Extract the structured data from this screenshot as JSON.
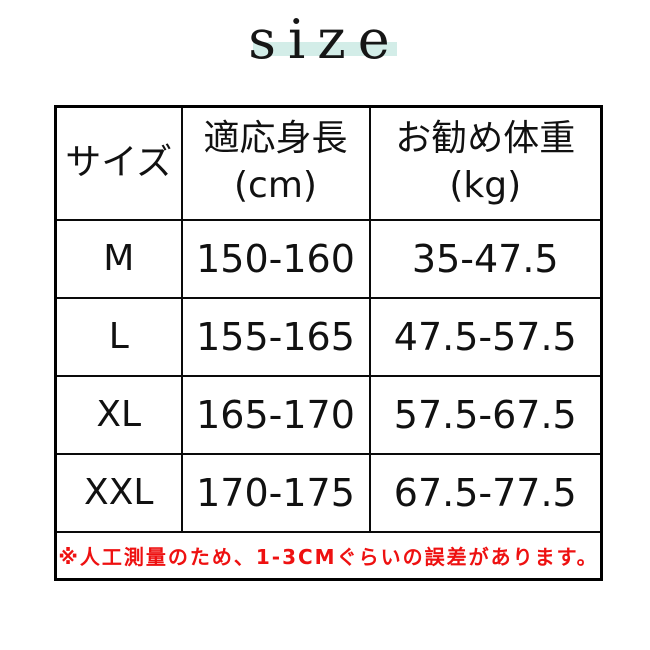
{
  "title": {
    "text": "size",
    "band_color": "#d3ede8"
  },
  "size_table": {
    "headers": [
      {
        "label": "サイズ",
        "unit": ""
      },
      {
        "label": "適応身長",
        "unit": "(cm)"
      },
      {
        "label": "お勧め体重",
        "unit": "(kg)"
      }
    ],
    "rows": [
      {
        "size": "M",
        "height_cm": "150-160",
        "weight_kg": "35-47.5"
      },
      {
        "size": "L",
        "height_cm": "155-165",
        "weight_kg": "47.5-57.5"
      },
      {
        "size": "XL",
        "height_cm": "165-170",
        "weight_kg": "57.5-67.5"
      },
      {
        "size": "XXL",
        "height_cm": "170-175",
        "weight_kg": "67.5-77.5"
      }
    ],
    "note": "※人工測量のため、1-3CMぐらいの誤差があります。",
    "colors": {
      "note_text": "#ee1111",
      "border": "#000000",
      "text": "#1a1a1a",
      "background": "#ffffff"
    }
  }
}
